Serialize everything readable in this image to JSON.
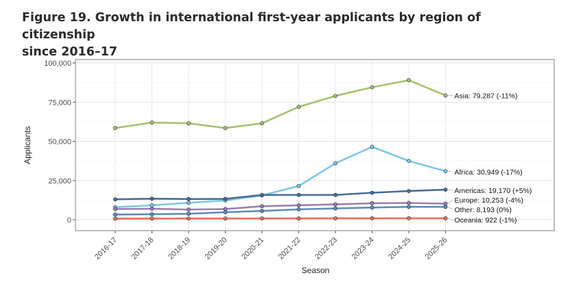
{
  "figure": {
    "title_line1": "Figure 19. Growth in international first-year applicants by region of citizenship",
    "title_line2": "since 2016–17"
  },
  "chart_data": {
    "type": "line",
    "xlabel": "Season",
    "ylabel": "Applicants",
    "ylim": [
      0,
      100000
    ],
    "yticks": [
      0,
      25000,
      50000,
      75000,
      100000
    ],
    "ytick_labels": [
      "0",
      "25,000",
      "50,000",
      "75,000",
      "100,000"
    ],
    "grid": true,
    "categories": [
      "2016-17",
      "2017-18",
      "2018-19",
      "2019-20",
      "2020-21",
      "2021-22",
      "2022-23",
      "2023-24",
      "2024-25",
      "2025-26"
    ],
    "series": [
      {
        "name": "Asia",
        "color": "#a4c46d",
        "label": "Asia: 79,287 (-11%)",
        "values": [
          58500,
          62000,
          61500,
          58500,
          61500,
          72000,
          79000,
          84500,
          89000,
          79287
        ]
      },
      {
        "name": "Africa",
        "color": "#7ec8e3",
        "label": "Africa: 30,949 (-17%)",
        "values": [
          8000,
          9200,
          10800,
          12300,
          15500,
          21500,
          36000,
          46500,
          37500,
          30949
        ]
      },
      {
        "name": "Americas",
        "color": "#4a6e96",
        "label": "Americas: 19,170 (+5%)",
        "values": [
          13000,
          13400,
          13200,
          13300,
          15800,
          15800,
          15800,
          17200,
          18300,
          19170
        ]
      },
      {
        "name": "Europe",
        "color": "#9b80b2",
        "label": "Europe: 10,253 (-4%)",
        "values": [
          6800,
          7000,
          6500,
          6800,
          8600,
          9200,
          9800,
          10500,
          10700,
          10253
        ]
      },
      {
        "name": "Other",
        "color": "#5c8db8",
        "label": "Other: 8,193 (0%)",
        "values": [
          3300,
          3500,
          3800,
          4800,
          5600,
          6600,
          7200,
          7800,
          8200,
          8193
        ]
      },
      {
        "name": "Oceania",
        "color": "#e8735a",
        "label": "Oceania: 922 (-1%)",
        "values": [
          700,
          750,
          780,
          800,
          820,
          850,
          880,
          900,
          930,
          922
        ]
      }
    ]
  }
}
